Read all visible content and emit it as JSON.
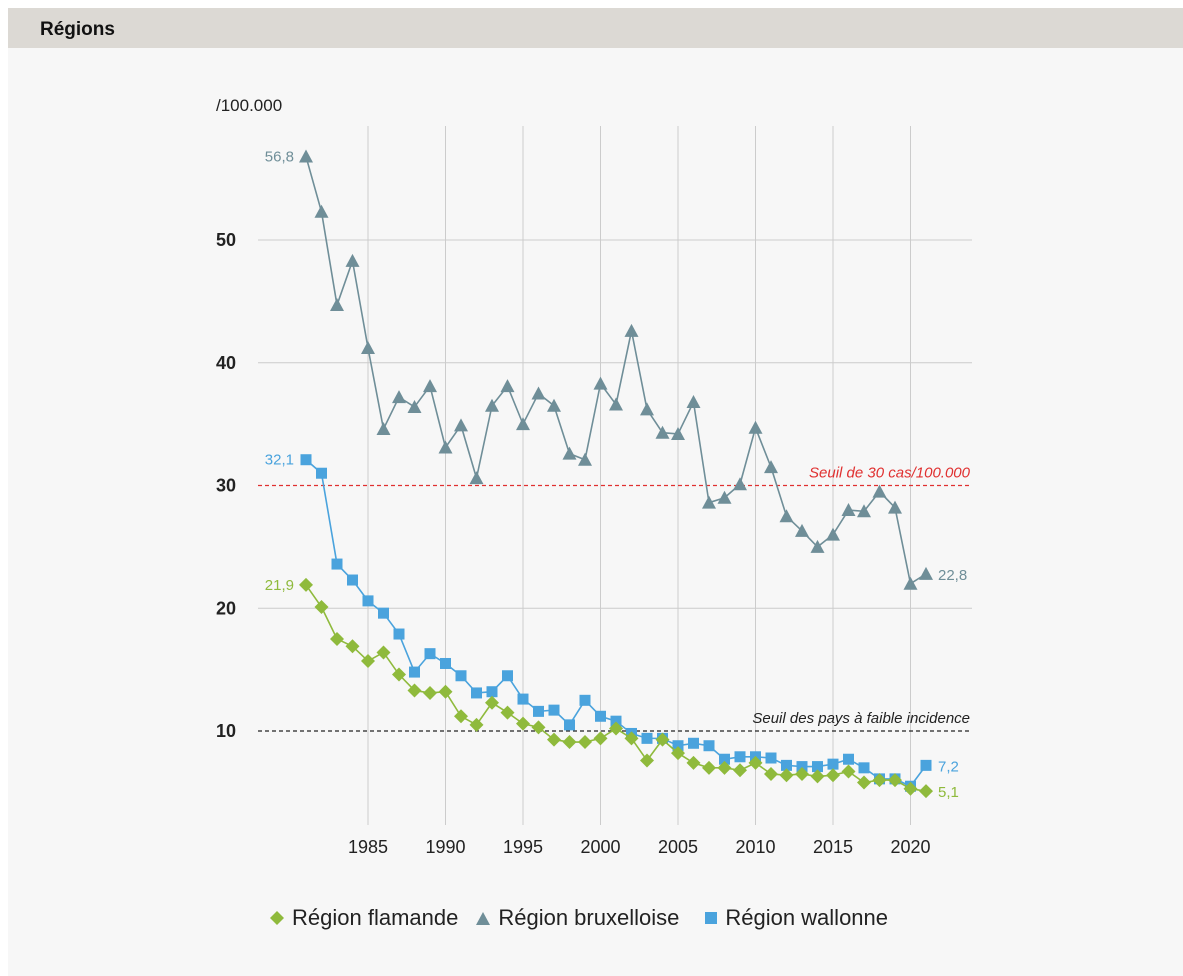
{
  "section": {
    "title": "Régions"
  },
  "colors": {
    "flamande": "#8fba3c",
    "bruxelloise": "#6f8e98",
    "wallonne": "#4aa3dd",
    "threshold_30": "#e03030",
    "threshold_low": "#222222",
    "grid": "#cccccc"
  },
  "chart_data": {
    "type": "line",
    "ylabel": "/100.000",
    "xlabel": "",
    "xlim": [
      1981,
      2021
    ],
    "ylim": [
      0,
      60
    ],
    "x_ticks": [
      1985,
      1990,
      1995,
      2000,
      2005,
      2010,
      2015,
      2020
    ],
    "y_ticks": [
      10,
      20,
      30,
      40,
      50
    ],
    "x": [
      1981,
      1982,
      1983,
      1984,
      1985,
      1986,
      1987,
      1988,
      1989,
      1990,
      1991,
      1992,
      1993,
      1994,
      1995,
      1996,
      1997,
      1998,
      1999,
      2000,
      2001,
      2002,
      2003,
      2004,
      2005,
      2006,
      2007,
      2008,
      2009,
      2010,
      2011,
      2012,
      2013,
      2014,
      2015,
      2016,
      2017,
      2018,
      2019,
      2020,
      2021
    ],
    "series": [
      {
        "name": "Région bruxelloise",
        "key": "bruxelloise",
        "marker": "triangle",
        "values": [
          56.8,
          52.3,
          44.7,
          48.3,
          41.2,
          34.6,
          37.2,
          36.4,
          38.1,
          33.1,
          34.9,
          30.6,
          36.5,
          38.1,
          35.0,
          37.5,
          36.5,
          32.6,
          32.1,
          38.3,
          36.6,
          42.6,
          36.2,
          34.3,
          34.2,
          36.8,
          28.6,
          29.0,
          30.1,
          34.7,
          31.5,
          27.5,
          26.3,
          25.0,
          26.0,
          28.0,
          27.9,
          29.5,
          28.2,
          22.0,
          22.8
        ],
        "start_label": "56,8",
        "end_label": "22,8"
      },
      {
        "name": "Région wallonne",
        "key": "wallonne",
        "marker": "square",
        "values": [
          32.1,
          31.0,
          23.6,
          22.3,
          20.6,
          19.6,
          17.9,
          14.8,
          16.3,
          15.5,
          14.5,
          13.1,
          13.2,
          14.5,
          12.6,
          11.6,
          11.7,
          10.5,
          12.5,
          11.2,
          10.8,
          9.8,
          9.4,
          9.4,
          8.8,
          9.0,
          8.8,
          7.7,
          7.9,
          7.9,
          7.8,
          7.2,
          7.1,
          7.1,
          7.3,
          7.7,
          7.0,
          6.1,
          6.1,
          5.5,
          7.2
        ],
        "start_label": "32,1",
        "end_label": "7,2"
      },
      {
        "name": "Région flamande",
        "key": "flamande",
        "marker": "diamond",
        "values": [
          21.9,
          20.1,
          17.5,
          16.9,
          15.7,
          16.4,
          14.6,
          13.3,
          13.1,
          13.2,
          11.2,
          10.5,
          12.3,
          11.5,
          10.6,
          10.3,
          9.3,
          9.1,
          9.1,
          9.4,
          10.2,
          9.4,
          7.6,
          9.3,
          8.2,
          7.4,
          7.0,
          7.0,
          6.8,
          7.4,
          6.5,
          6.4,
          6.5,
          6.3,
          6.4,
          6.7,
          5.8,
          6.0,
          6.0,
          5.3,
          5.1
        ],
        "start_label": "21,9",
        "end_label": "5,1"
      }
    ],
    "thresholds": [
      {
        "value": 30,
        "label": "Seuil de 30 cas/100.000",
        "color_key": "threshold_30"
      },
      {
        "value": 10,
        "label": "Seuil des pays à faible incidence",
        "color_key": "threshold_low"
      }
    ],
    "grid": true,
    "legend_position": "bottom"
  },
  "legend": [
    {
      "label": "Région flamande",
      "key": "flamande",
      "marker": "diamond"
    },
    {
      "label": "Région bruxelloise",
      "key": "bruxelloise",
      "marker": "triangle"
    },
    {
      "label": "Région wallonne",
      "key": "wallonne",
      "marker": "square"
    }
  ]
}
